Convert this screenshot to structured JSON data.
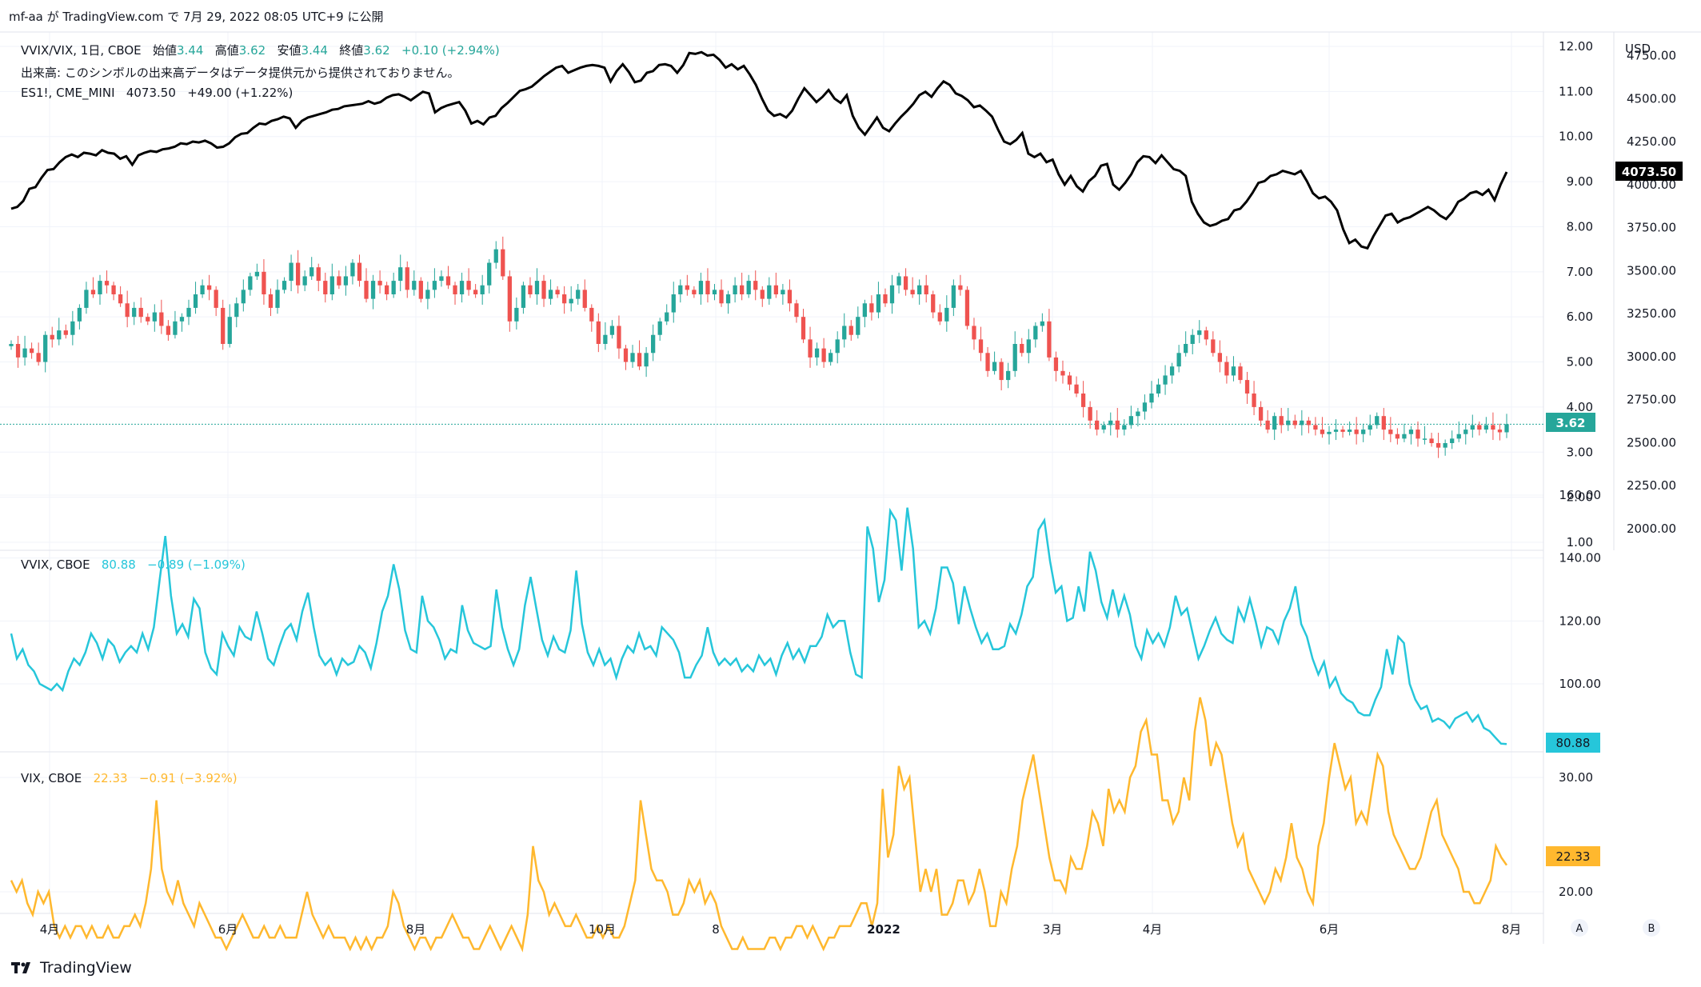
{
  "header": {
    "text": "mf-aa が TradingView.com で 7月 29, 2022 08:05 UTC+9 に公開"
  },
  "legends": {
    "ratio": {
      "symbol": "VVIX/VIX, 1日, CBOE",
      "open_label": "始値",
      "open": "3.44",
      "high_label": "高値",
      "high": "3.62",
      "low_label": "安値",
      "low": "3.44",
      "close_label": "終値",
      "close": "3.62",
      "change": "+0.10 (+2.94%)"
    },
    "volume_note": "出来高: このシンボルの出来高データはデータ提供元から提供されておりません。",
    "es": {
      "symbol": "ES1!, CME_MINI",
      "value": "4073.50",
      "change": "+49.00 (+1.22%)"
    },
    "vvix": {
      "symbol": "VVIX, CBOE",
      "value": "80.88",
      "change": "−0.89 (−1.09%)"
    },
    "vix": {
      "symbol": "VIX, CBOE",
      "value": "22.33",
      "change": "−0.91 (−3.92%)"
    }
  },
  "colors": {
    "up": "#26a69a",
    "down": "#ef5350",
    "vvix": "#26c6da",
    "vix": "#ffb82e",
    "es": "#000000",
    "text": "#131722",
    "grid": "#f0f3fa",
    "axis_text": "#131722"
  },
  "axis": {
    "currency": "USD",
    "ratio_ticks": [
      "12.00",
      "11.00",
      "10.00",
      "9.00",
      "8.00",
      "7.00",
      "6.00",
      "5.00",
      "4.00",
      "3.00",
      "2.00",
      "1.00"
    ],
    "es_ticks": [
      "4750.00",
      "4500.00",
      "4250.00",
      "4000.00",
      "3750.00",
      "3500.00",
      "3250.00",
      "3000.00",
      "2750.00",
      "2500.00",
      "2250.00",
      "2000.00"
    ],
    "vvix_ticks": [
      "160.00",
      "140.00",
      "120.00",
      "100.00"
    ],
    "vix_ticks": [
      "30.00",
      "20.00"
    ],
    "x_labels": [
      "4月",
      "6月",
      "8月",
      "10月",
      "8",
      "2022",
      "3月",
      "4月",
      "6月",
      "8月"
    ],
    "scale_buttons": [
      "A",
      "B"
    ]
  },
  "price_tags": {
    "ratio": "3.62",
    "es": "4073.50",
    "vvix": "80.88",
    "vix": "22.33"
  },
  "brand": "TradingView",
  "chart_data": [
    {
      "type": "line",
      "name": "ES1!, CME_MINI",
      "x_range": [
        "2021-03-22",
        "2022-07-28"
      ],
      "ylim": [
        1920,
        4850
      ],
      "values": [
        3860,
        3870,
        3905,
        3975,
        3985,
        4040,
        4085,
        4090,
        4130,
        4160,
        4175,
        4160,
        4185,
        4180,
        4170,
        4200,
        4185,
        4180,
        4150,
        4165,
        4115,
        4170,
        4185,
        4195,
        4190,
        4205,
        4210,
        4220,
        4240,
        4235,
        4250,
        4245,
        4255,
        4240,
        4215,
        4220,
        4240,
        4275,
        4295,
        4300,
        4330,
        4355,
        4350,
        4370,
        4380,
        4395,
        4385,
        4330,
        4370,
        4390,
        4400,
        4410,
        4420,
        4435,
        4440,
        4455,
        4460,
        4465,
        4470,
        4485,
        4470,
        4480,
        4505,
        4520,
        4525,
        4510,
        4490,
        4515,
        4540,
        4530,
        4420,
        4445,
        4460,
        4470,
        4480,
        4430,
        4355,
        4370,
        4350,
        4390,
        4400,
        4445,
        4475,
        4510,
        4545,
        4555,
        4570,
        4600,
        4630,
        4655,
        4680,
        4690,
        4650,
        4665,
        4680,
        4690,
        4695,
        4690,
        4680,
        4600,
        4660,
        4700,
        4655,
        4595,
        4605,
        4650,
        4660,
        4695,
        4700,
        4690,
        4650,
        4695,
        4765,
        4760,
        4770,
        4750,
        4755,
        4725,
        4680,
        4700,
        4670,
        4690,
        4640,
        4580,
        4500,
        4430,
        4400,
        4410,
        4390,
        4430,
        4500,
        4560,
        4520,
        4480,
        4510,
        4550,
        4500,
        4475,
        4520,
        4400,
        4330,
        4290,
        4340,
        4390,
        4330,
        4310,
        4355,
        4395,
        4430,
        4470,
        4520,
        4540,
        4510,
        4560,
        4600,
        4580,
        4530,
        4515,
        4490,
        4450,
        4460,
        4430,
        4395,
        4320,
        4250,
        4235,
        4260,
        4300,
        4180,
        4160,
        4180,
        4130,
        4145,
        4060,
        4000,
        4050,
        3990,
        3960,
        4020,
        4050,
        4110,
        4120,
        4000,
        3970,
        4010,
        4060,
        4130,
        4165,
        4160,
        4125,
        4170,
        4130,
        4090,
        4080,
        4050,
        3900,
        3830,
        3780,
        3760,
        3770,
        3790,
        3800,
        3850,
        3860,
        3900,
        3950,
        4010,
        4020,
        4050,
        4060,
        4080,
        4070,
        4060,
        4080,
        4020,
        3950,
        3920,
        3930,
        3900,
        3850,
        3740,
        3660,
        3680,
        3640,
        3630,
        3700,
        3760,
        3820,
        3830,
        3780,
        3800,
        3810,
        3830,
        3850,
        3870,
        3850,
        3820,
        3800,
        3840,
        3900,
        3920,
        3950,
        3960,
        3940,
        3970,
        3910,
        4000,
        4073.5
      ]
    },
    {
      "type": "candlestick",
      "name": "VVIX/VIX, 1日, CBOE",
      "x_range": [
        "2021-03-22",
        "2022-07-28"
      ],
      "ylim": [
        0.92,
        12.45
      ],
      "last": {
        "open": 3.44,
        "high": 3.62,
        "low": 3.44,
        "close": 3.62
      },
      "closes": [
        5.4,
        5.1,
        5.3,
        5.2,
        5.0,
        5.6,
        5.5,
        5.7,
        5.6,
        5.9,
        6.2,
        6.6,
        6.5,
        6.8,
        6.7,
        6.5,
        6.3,
        6.0,
        6.2,
        6.0,
        5.9,
        6.1,
        5.8,
        5.6,
        5.9,
        6.0,
        6.2,
        6.5,
        6.7,
        6.6,
        6.2,
        5.4,
        6.0,
        6.3,
        6.6,
        6.9,
        7.0,
        6.5,
        6.2,
        6.6,
        6.8,
        7.2,
        6.7,
        6.9,
        7.1,
        6.8,
        6.5,
        6.9,
        6.7,
        6.9,
        7.2,
        6.8,
        6.4,
        6.8,
        6.7,
        6.5,
        6.8,
        7.1,
        6.6,
        6.8,
        6.4,
        6.6,
        6.8,
        6.9,
        6.7,
        6.5,
        6.8,
        6.6,
        6.5,
        6.7,
        7.2,
        7.5,
        6.9,
        5.9,
        6.2,
        6.7,
        6.5,
        6.8,
        6.4,
        6.6,
        6.5,
        6.3,
        6.4,
        6.6,
        6.2,
        5.9,
        5.4,
        5.6,
        5.8,
        5.3,
        5.0,
        5.2,
        4.9,
        5.2,
        5.6,
        5.9,
        6.1,
        6.5,
        6.7,
        6.6,
        6.5,
        6.8,
        6.5,
        6.6,
        6.3,
        6.5,
        6.7,
        6.5,
        6.8,
        6.6,
        6.4,
        6.7,
        6.5,
        6.6,
        6.3,
        6.0,
        5.5,
        5.1,
        5.3,
        5.0,
        5.2,
        5.5,
        5.8,
        5.6,
        6.0,
        6.3,
        6.1,
        6.5,
        6.3,
        6.7,
        6.9,
        6.6,
        6.5,
        6.7,
        6.5,
        6.1,
        5.9,
        6.2,
        6.7,
        6.6,
        5.8,
        5.5,
        5.2,
        4.8,
        5.0,
        4.6,
        4.8,
        5.4,
        5.2,
        5.5,
        5.8,
        5.9,
        5.1,
        4.8,
        4.7,
        4.5,
        4.3,
        4.0,
        3.7,
        3.5,
        3.6,
        3.7,
        3.5,
        3.6,
        3.8,
        3.9,
        4.1,
        4.3,
        4.5,
        4.7,
        4.9,
        5.2,
        5.4,
        5.6,
        5.7,
        5.5,
        5.2,
        5.0,
        4.7,
        4.9,
        4.6,
        4.3,
        4.0,
        3.7,
        3.5,
        3.8,
        3.6,
        3.7,
        3.6,
        3.7,
        3.6,
        3.5,
        3.4,
        3.45,
        3.5,
        3.45,
        3.5,
        3.4,
        3.5,
        3.6,
        3.8,
        3.5,
        3.4,
        3.3,
        3.4,
        3.5,
        3.3,
        3.3,
        3.2,
        3.1,
        3.2,
        3.3,
        3.4,
        3.5,
        3.6,
        3.5,
        3.6,
        3.5,
        3.44,
        3.62
      ]
    },
    {
      "type": "line",
      "name": "VVIX, CBOE",
      "x_range": [
        "2021-03-22",
        "2022-07-28"
      ],
      "ylim": [
        77,
        163
      ],
      "values": [
        116,
        108,
        111,
        106,
        104,
        100,
        99,
        98,
        100,
        98,
        104,
        108,
        106,
        110,
        116,
        113,
        108,
        114,
        112,
        107,
        110,
        112,
        110,
        116,
        111,
        118,
        133,
        147,
        128,
        116,
        119,
        115,
        127,
        124,
        110,
        105,
        103,
        116,
        112,
        109,
        118,
        115,
        114,
        123,
        116,
        108,
        106,
        112,
        117,
        119,
        114,
        123,
        129,
        118,
        109,
        106,
        108,
        103,
        108,
        106,
        107,
        112,
        110,
        105,
        113,
        123,
        128,
        138,
        130,
        117,
        111,
        110,
        128,
        120,
        118,
        114,
        108,
        111,
        110,
        125,
        117,
        113,
        112,
        111,
        112,
        130,
        118,
        111,
        106,
        111,
        125,
        134,
        124,
        114,
        109,
        115,
        111,
        110,
        117,
        136,
        119,
        110,
        106,
        111,
        106,
        108,
        102,
        108,
        112,
        110,
        116,
        111,
        112,
        109,
        118,
        116,
        114,
        110,
        102,
        102,
        106,
        109,
        118,
        110,
        106,
        108,
        106,
        108,
        104,
        106,
        104,
        109,
        106,
        108,
        103,
        109,
        113,
        108,
        111,
        107,
        112,
        112,
        115,
        122,
        118,
        120,
        120,
        110,
        103,
        102,
        150,
        143,
        126,
        133,
        155,
        152,
        136,
        156,
        143,
        118,
        120,
        116,
        124,
        137,
        137,
        132,
        119,
        131,
        124,
        118,
        113,
        116,
        111,
        111,
        112,
        119,
        116,
        122,
        131,
        134,
        149,
        152,
        139,
        129,
        131,
        120,
        121,
        131,
        123,
        142,
        136,
        126,
        121,
        130,
        122,
        128,
        122,
        112,
        108,
        117,
        113,
        116,
        112,
        118,
        128,
        122,
        124,
        116,
        108,
        112,
        117,
        121,
        116,
        114,
        113,
        124,
        120,
        127,
        120,
        112,
        118,
        117,
        113,
        120,
        124,
        131,
        119,
        115,
        108,
        103,
        107,
        99,
        102,
        97,
        95,
        94,
        91,
        90,
        90,
        95,
        99,
        111,
        103,
        115,
        113,
        100,
        95,
        92,
        93,
        88,
        89,
        88,
        86,
        89,
        90,
        91,
        88,
        90,
        86,
        85,
        83,
        81,
        80.88
      ]
    },
    {
      "type": "line",
      "name": "VIX, CBOE",
      "x_range": [
        "2021-03-22",
        "2022-07-28"
      ],
      "ylim": [
        13,
        38
      ],
      "values": [
        21,
        20,
        21,
        19,
        18,
        20,
        19,
        20,
        17,
        16,
        17,
        16,
        17,
        17,
        16,
        17,
        16,
        16,
        17,
        16,
        16,
        17,
        17,
        18,
        17,
        19,
        22,
        28,
        22,
        20,
        19,
        21,
        19,
        18,
        17,
        19,
        18,
        17,
        16,
        16,
        15,
        16,
        17,
        18,
        17,
        16,
        16,
        17,
        16,
        16,
        17,
        16,
        16,
        16,
        18,
        20,
        18,
        17,
        16,
        17,
        16,
        16,
        16,
        15,
        16,
        15,
        16,
        15,
        16,
        16,
        17,
        20,
        19,
        17,
        16,
        15,
        16,
        16,
        15,
        16,
        16,
        17,
        18,
        17,
        16,
        16,
        15,
        15,
        16,
        17,
        16,
        15,
        16,
        17,
        16,
        15,
        18,
        24,
        21,
        20,
        18,
        19,
        18,
        17,
        17,
        18,
        17,
        16,
        16,
        17,
        16,
        17,
        16,
        16,
        17,
        19,
        21,
        28,
        25,
        22,
        21,
        21,
        20,
        18,
        18,
        19,
        21,
        20,
        21,
        19,
        20,
        19,
        17,
        16,
        15,
        15,
        16,
        15,
        15,
        15,
        15,
        16,
        16,
        15,
        16,
        16,
        17,
        17,
        16,
        17,
        16,
        15,
        16,
        16,
        17,
        17,
        17,
        18,
        19,
        19,
        17,
        19,
        29,
        23,
        25,
        31,
        29,
        30,
        25,
        20,
        22,
        20,
        22,
        18,
        18,
        19,
        21,
        21,
        19,
        20,
        22,
        20,
        17,
        17,
        20,
        19,
        22,
        24,
        28,
        30,
        32,
        29,
        26,
        23,
        21,
        21,
        20,
        23,
        22,
        22,
        24,
        27,
        26,
        24,
        29,
        27,
        28,
        27,
        30,
        31,
        34,
        35,
        32,
        32,
        28,
        28,
        26,
        27,
        30,
        28,
        34,
        37,
        35,
        31,
        33,
        32,
        29,
        26,
        24,
        25,
        22,
        21,
        20,
        19,
        20,
        22,
        21,
        23,
        26,
        23,
        22,
        20,
        19,
        24,
        26,
        30,
        33,
        31,
        29,
        30,
        26,
        27,
        26,
        29,
        32,
        31,
        27,
        25,
        24,
        23,
        22,
        22,
        23,
        25,
        27,
        28,
        25,
        24,
        23,
        22,
        20,
        20,
        19,
        19,
        20,
        21,
        24,
        23,
        22.33
      ]
    }
  ]
}
